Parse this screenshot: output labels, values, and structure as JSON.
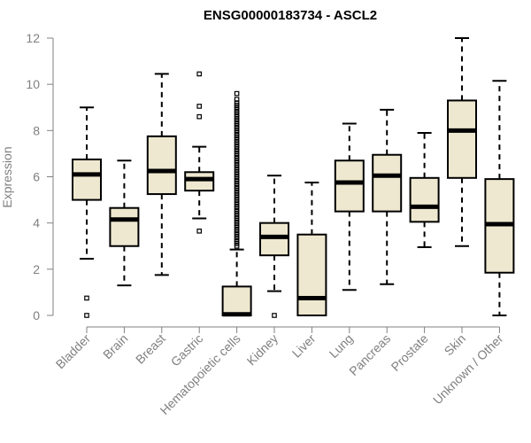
{
  "chart_data": {
    "type": "boxplot",
    "title": "ENSG00000183734 - ASCL2",
    "ylabel": "Expression",
    "xlabel": "",
    "ylim": [
      0,
      12
    ],
    "yticks": [
      0,
      2,
      4,
      6,
      8,
      10,
      12
    ],
    "grid": false,
    "box_fill": "#EEE8D0",
    "box_stroke": "#000000",
    "outlier_stroke": "#000000",
    "categories": [
      "Bladder",
      "Brain",
      "Breast",
      "Gastric",
      "Hematopoietic cells",
      "Kidney",
      "Liver",
      "Lung",
      "Pancreas",
      "Prostate",
      "Skin",
      "Unknown / Other"
    ],
    "boxes": [
      {
        "whisker_low": 2.45,
        "q1": 5.0,
        "median": 6.1,
        "q3": 6.75,
        "whisker_high": 9.0,
        "outliers": [
          0.0,
          0.75
        ]
      },
      {
        "whisker_low": 1.3,
        "q1": 3.0,
        "median": 4.15,
        "q3": 4.65,
        "whisker_high": 6.7,
        "outliers": []
      },
      {
        "whisker_low": 1.75,
        "q1": 5.25,
        "median": 6.25,
        "q3": 7.75,
        "whisker_high": 10.45,
        "outliers": []
      },
      {
        "whisker_low": 4.2,
        "q1": 5.4,
        "median": 5.9,
        "q3": 6.2,
        "whisker_high": 7.3,
        "outliers": [
          3.65,
          8.6,
          9.05,
          10.45
        ]
      },
      {
        "whisker_low": 0.0,
        "q1": 0.0,
        "median": 0.05,
        "q3": 1.25,
        "whisker_high": 2.85,
        "outliers": [
          3.0,
          3.1,
          3.2,
          3.3,
          3.4,
          3.5,
          3.6,
          3.7,
          3.8,
          3.9,
          4.0,
          4.1,
          4.2,
          4.3,
          4.4,
          4.5,
          4.6,
          4.7,
          4.8,
          4.9,
          5.0,
          5.1,
          5.2,
          5.3,
          5.4,
          5.5,
          5.6,
          5.7,
          5.8,
          5.9,
          6.0,
          6.1,
          6.2,
          6.3,
          6.4,
          6.5,
          6.6,
          6.7,
          6.8,
          6.9,
          7.0,
          7.1,
          7.2,
          7.3,
          7.4,
          7.5,
          7.6,
          7.7,
          7.8,
          7.9,
          8.0,
          8.1,
          8.2,
          8.3,
          8.4,
          8.5,
          8.6,
          8.7,
          8.8,
          8.9,
          9.0,
          9.1,
          9.2,
          9.35,
          9.6
        ]
      },
      {
        "whisker_low": 1.05,
        "q1": 2.6,
        "median": 3.4,
        "q3": 4.0,
        "whisker_high": 6.05,
        "outliers": [
          0.0
        ]
      },
      {
        "whisker_low": 0.0,
        "q1": 0.0,
        "median": 0.75,
        "q3": 3.5,
        "whisker_high": 5.75,
        "outliers": []
      },
      {
        "whisker_low": 1.1,
        "q1": 4.5,
        "median": 5.75,
        "q3": 6.7,
        "whisker_high": 8.3,
        "outliers": []
      },
      {
        "whisker_low": 1.35,
        "q1": 4.5,
        "median": 6.05,
        "q3": 6.95,
        "whisker_high": 8.9,
        "outliers": []
      },
      {
        "whisker_low": 2.95,
        "q1": 4.05,
        "median": 4.7,
        "q3": 5.95,
        "whisker_high": 7.9,
        "outliers": []
      },
      {
        "whisker_low": 3.0,
        "q1": 5.95,
        "median": 8.0,
        "q3": 9.3,
        "whisker_high": 12.0,
        "outliers": []
      },
      {
        "whisker_low": 0.0,
        "q1": 1.85,
        "median": 3.95,
        "q3": 5.9,
        "whisker_high": 10.15,
        "outliers": []
      }
    ]
  }
}
